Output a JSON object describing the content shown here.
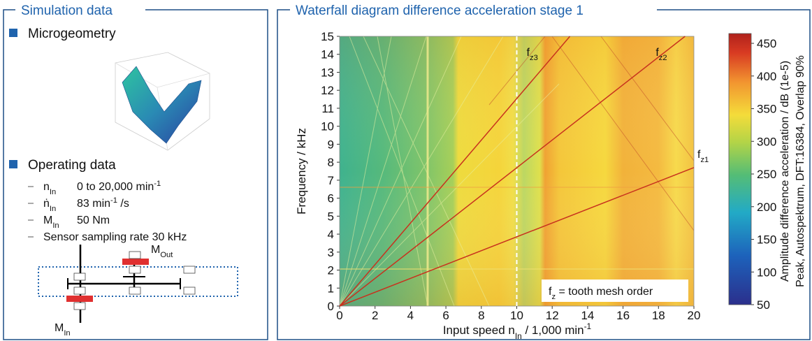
{
  "left_panel": {
    "title": "Simulation data",
    "microgeometry": "Microgeometry",
    "operating_data": {
      "heading": "Operating data",
      "items": [
        {
          "symbol": "n",
          "sub": "In",
          "text": "0 to 20,000 min",
          "sup": "-1"
        },
        {
          "symbol": "ṅ",
          "sub": "In",
          "text": "83 min",
          "sup": "-1",
          "tail": " /s"
        },
        {
          "symbol": "M",
          "sub": "In",
          "text": "50 Nm"
        },
        {
          "text": "Sensor sampling rate 30 kHz"
        }
      ]
    },
    "schematic": {
      "m_out": {
        "symbol": "M",
        "sub": "Out"
      },
      "m_in": {
        "symbol": "M",
        "sub": "In"
      }
    }
  },
  "chart_data": {
    "type": "heatmap",
    "title": "Waterfall diagram difference acceleration stage 1",
    "xlabel": {
      "text": "Input speed n",
      "sub": "In",
      "unit": " / 1,000 min",
      "sup": "-1"
    },
    "ylabel": "Frequency / kHz",
    "xlim": [
      0,
      20
    ],
    "xticks": [
      0,
      2,
      4,
      6,
      8,
      10,
      12,
      14,
      16,
      18,
      20
    ],
    "ylim": [
      0,
      15
    ],
    "yticks": [
      0,
      1,
      2,
      3,
      4,
      5,
      6,
      7,
      8,
      9,
      10,
      11,
      12,
      13,
      14,
      15
    ],
    "colorbar": {
      "label": "Amplitude difference acceleration / dB (1e-5)",
      "label2": "Peak, Autospektrum, DFT:16384, Overlap 90%",
      "clim": [
        50,
        465
      ],
      "ticks": [
        50,
        100,
        150,
        200,
        250,
        300,
        350,
        400,
        450
      ]
    },
    "series": [
      {
        "name": "f",
        "name_sub": "z1",
        "color": "#c8321e",
        "x": [
          0,
          20
        ],
        "values": [
          0,
          7.7
        ]
      },
      {
        "name": "f",
        "name_sub": "z2",
        "color": "#c8321e",
        "x": [
          0,
          19.5
        ],
        "values": [
          0,
          15
        ]
      },
      {
        "name": "f",
        "name_sub": "z3",
        "color": "#c8321e",
        "x": [
          0,
          13
        ],
        "values": [
          0,
          15
        ]
      }
    ],
    "legend": {
      "symbol": "f",
      "sub": "z",
      "text": " =  tooth mesh order"
    },
    "marker_line_x": 10
  }
}
